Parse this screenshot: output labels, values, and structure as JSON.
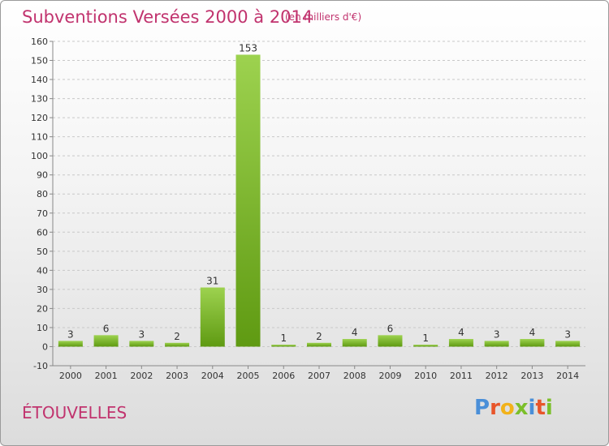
{
  "header": {
    "title": "Subventions Versées 2000 à 2014",
    "unit": "(en milliers d'€)"
  },
  "footer": {
    "commune": "ÉTOUVELLES",
    "logo_text": "Proxiti",
    "logo_colors": [
      "#4a8fd8",
      "#e8552a",
      "#f2b21a",
      "#7bbf2a",
      "#4a8fd8",
      "#e8552a",
      "#7bbf2a"
    ]
  },
  "colors": {
    "bar_light": "#9dd24f",
    "bar_dark": "#5f9a12",
    "text": "#c1336e",
    "grid": "#c8c8c8",
    "axis_text": "#333333"
  },
  "chart_data": {
    "type": "bar",
    "title": "Subventions Versées 2000 à 2014",
    "subtitle": "(en milliers d'€)",
    "categories": [
      "2000",
      "2001",
      "2002",
      "2003",
      "2004",
      "2005",
      "2006",
      "2007",
      "2008",
      "2009",
      "2010",
      "2011",
      "2012",
      "2013",
      "2014"
    ],
    "values": [
      3,
      6,
      3,
      2,
      31,
      153,
      1,
      2,
      4,
      6,
      1,
      4,
      3,
      4,
      3
    ],
    "ylim": [
      -10,
      160
    ],
    "yticks": [
      -10,
      0,
      10,
      20,
      30,
      40,
      50,
      60,
      70,
      80,
      90,
      100,
      110,
      120,
      130,
      140,
      150,
      160
    ],
    "grid": true,
    "xlabel": "",
    "ylabel": ""
  }
}
